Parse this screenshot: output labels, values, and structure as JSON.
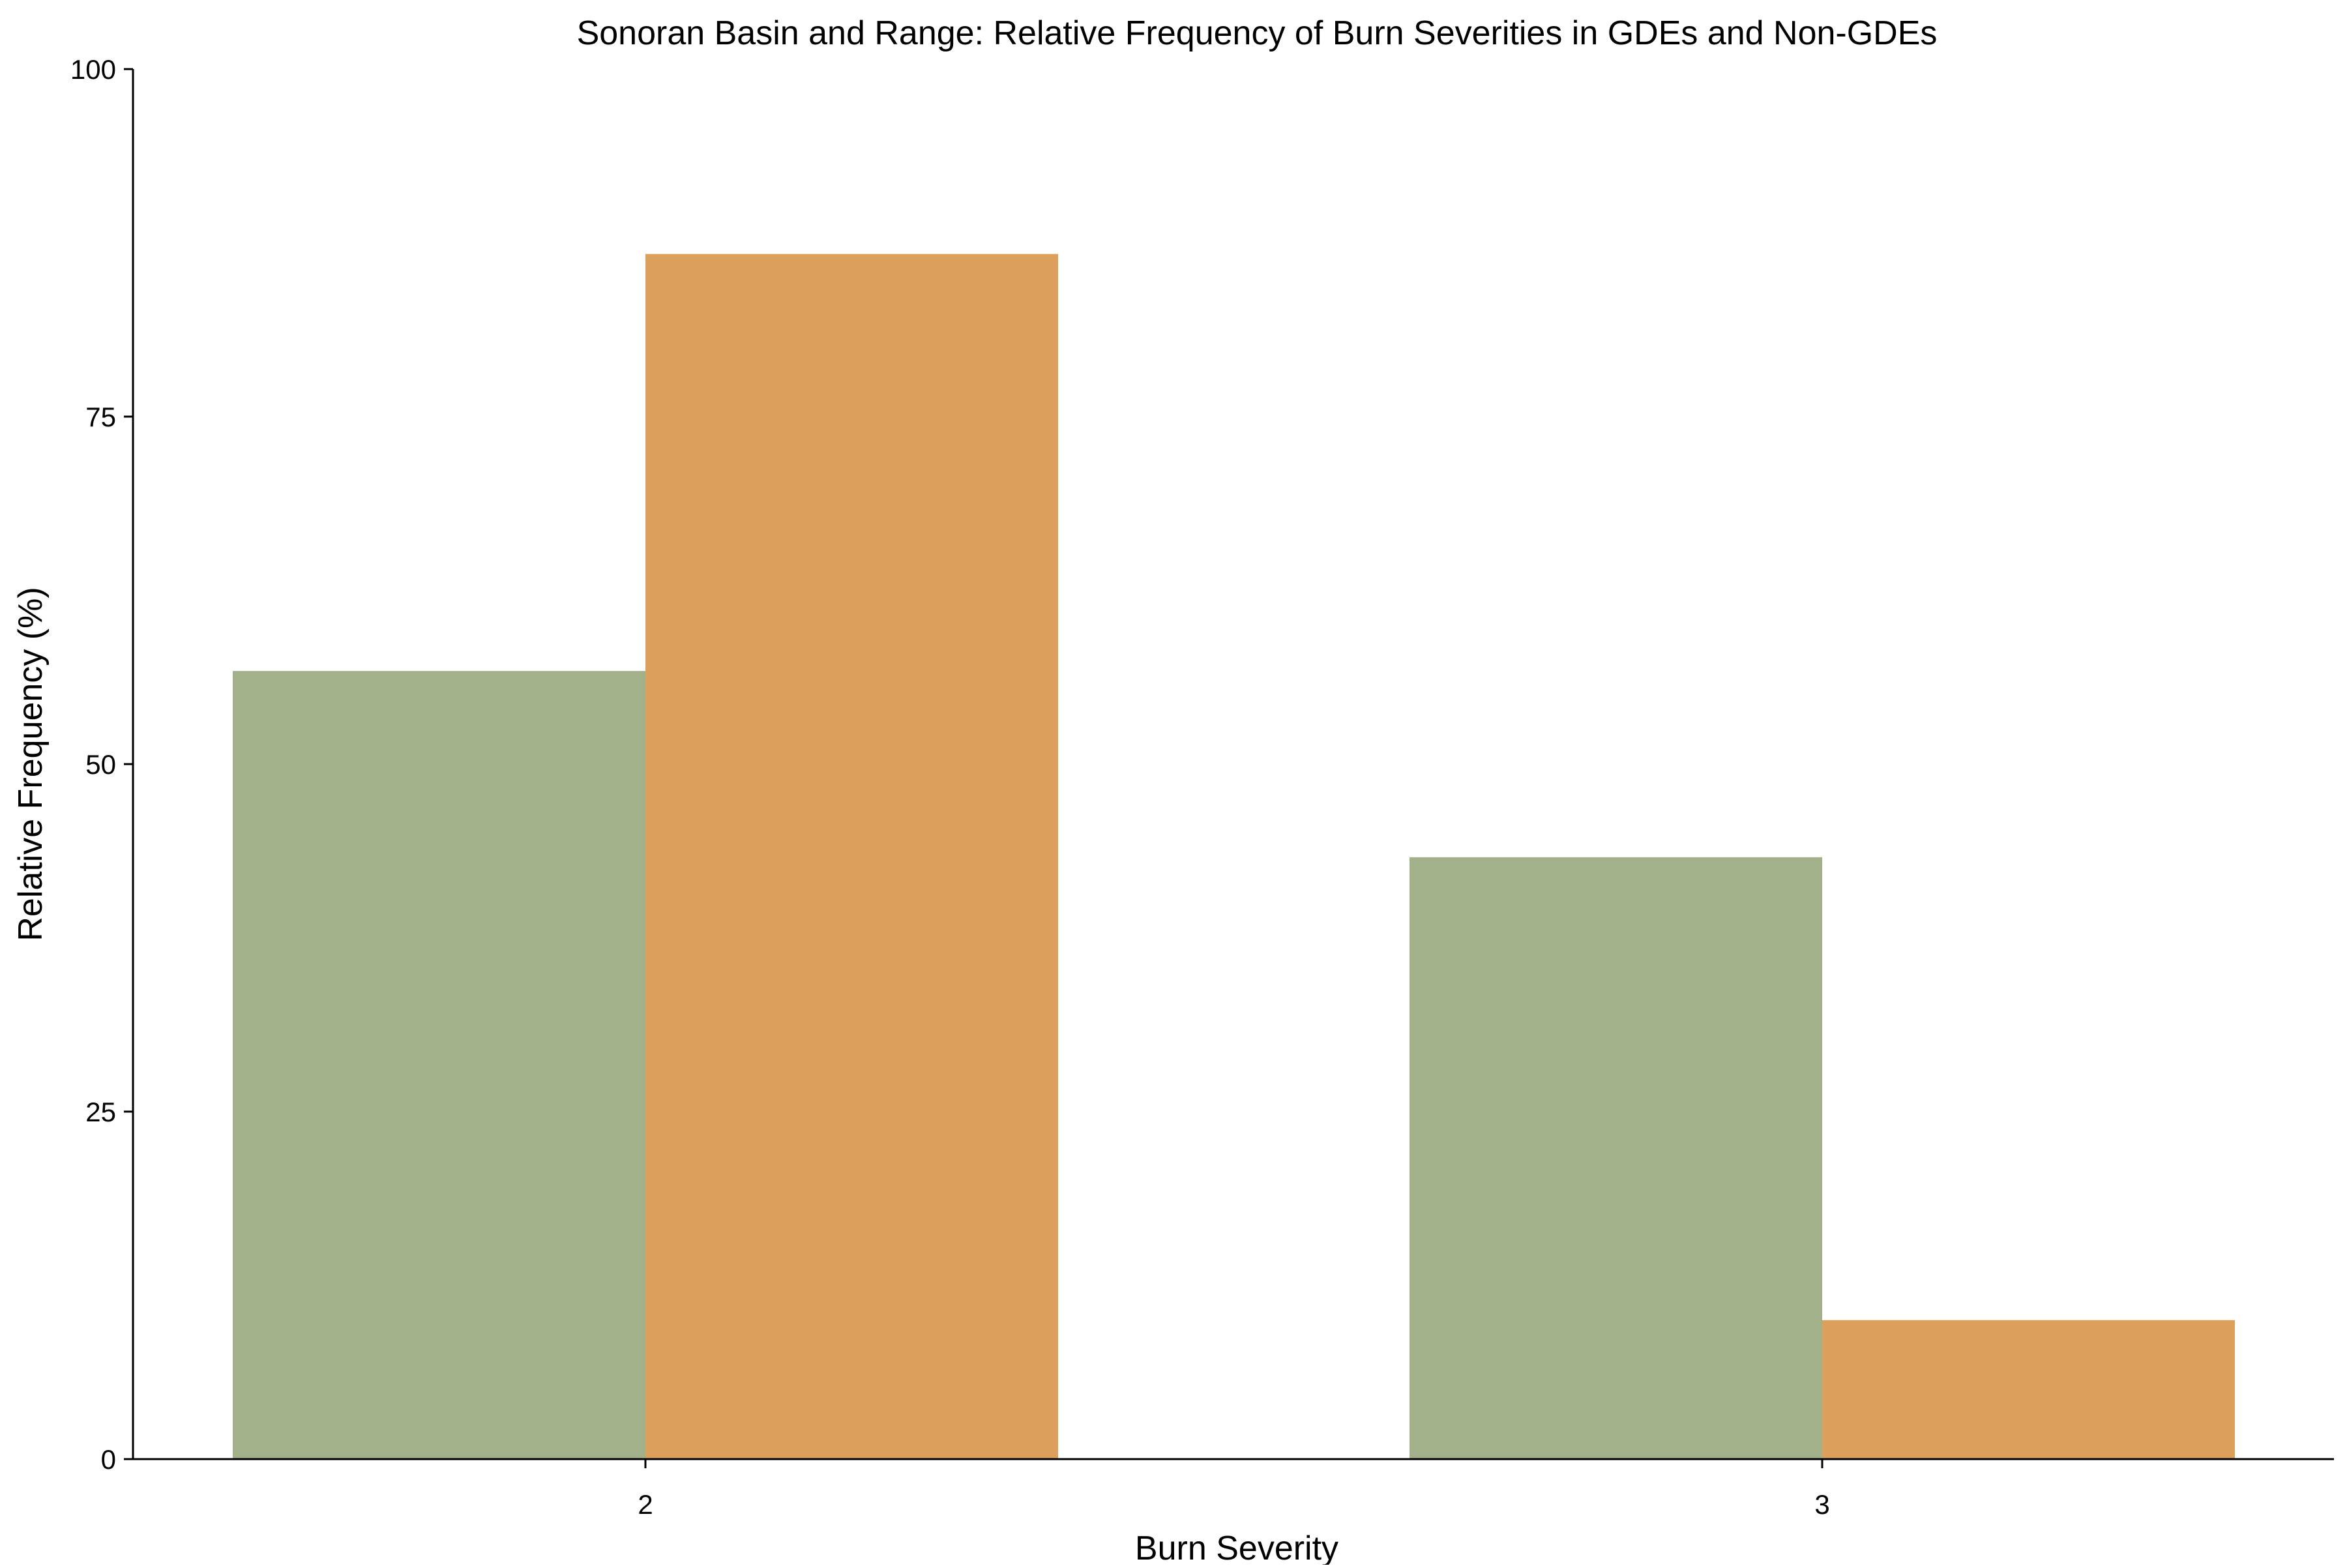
{
  "chart_data": {
    "type": "bar",
    "title": "Sonoran Basin and Range: Relative Frequency of Burn Severities in GDEs and Non-GDEs",
    "xlabel": "Burn Severity",
    "ylabel": "Relative Frequency (%)",
    "categories": [
      "2",
      "3"
    ],
    "series": [
      {
        "color": "#a2b18a",
        "values": [
          56.7,
          43.3
        ]
      },
      {
        "color": "#dca05c",
        "values": [
          86.7,
          10.0
        ]
      }
    ],
    "ylim": [
      0,
      100
    ],
    "yticks": [
      0,
      25,
      50,
      75,
      100
    ],
    "grid": false,
    "legend": "none"
  }
}
